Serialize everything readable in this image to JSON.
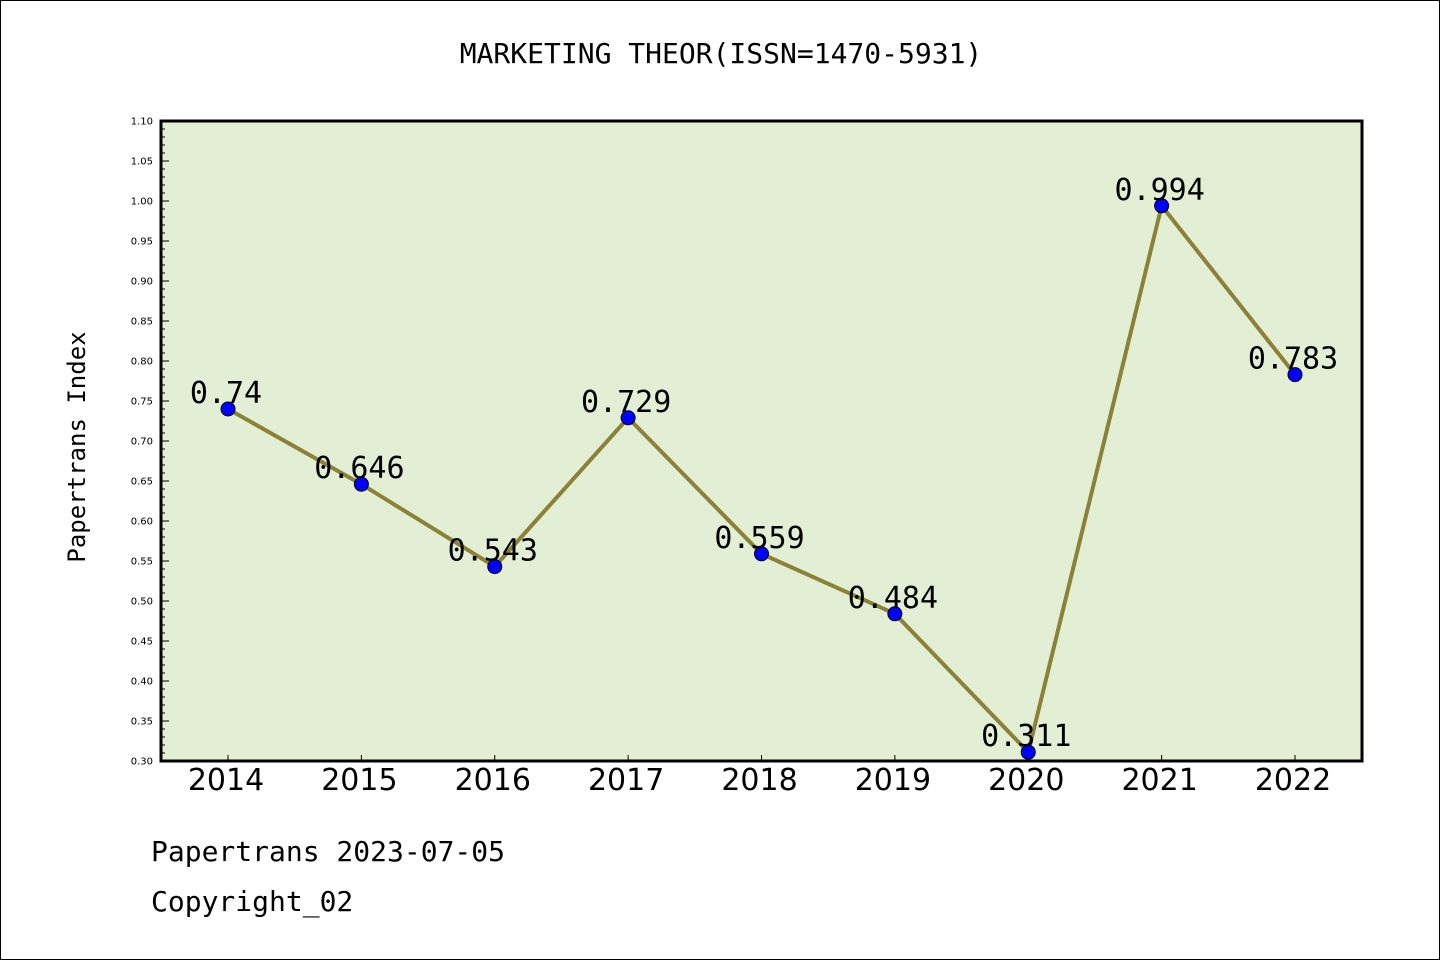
{
  "chart_data": {
    "type": "line",
    "title": "MARKETING THEOR(ISSN=1470-5931)",
    "xlabel": "",
    "ylabel": "Papertrans Index",
    "categories": [
      "2014",
      "2015",
      "2016",
      "2017",
      "2018",
      "2019",
      "2020",
      "2021",
      "2022"
    ],
    "series": [
      {
        "values": [
          0.74,
          0.646,
          0.543,
          0.729,
          0.559,
          0.484,
          0.311,
          0.994,
          0.783
        ],
        "data_labels": [
          "0.74",
          "0.646",
          "0.543",
          "0.729",
          "0.559",
          "0.484",
          "0.311",
          "0.994",
          "0.783"
        ],
        "line_color": "#8b8237",
        "marker_color": "#0000ff"
      }
    ],
    "ylim": [
      0.3,
      1.1
    ],
    "ytick_step": 0.05,
    "ytick_labels": [
      "0.30",
      "0.35",
      "0.40",
      "0.45",
      "0.50",
      "0.55",
      "0.60",
      "0.65",
      "0.70",
      "0.75",
      "0.80",
      "0.85",
      "0.90",
      "0.95",
      "1.00",
      "1.05",
      "1.10"
    ],
    "grid": false,
    "legend": "none",
    "plot_background": "#e2efd5"
  },
  "footer": {
    "source": "Papertrans 2023-07-05",
    "copyright": "Copyright_02"
  }
}
